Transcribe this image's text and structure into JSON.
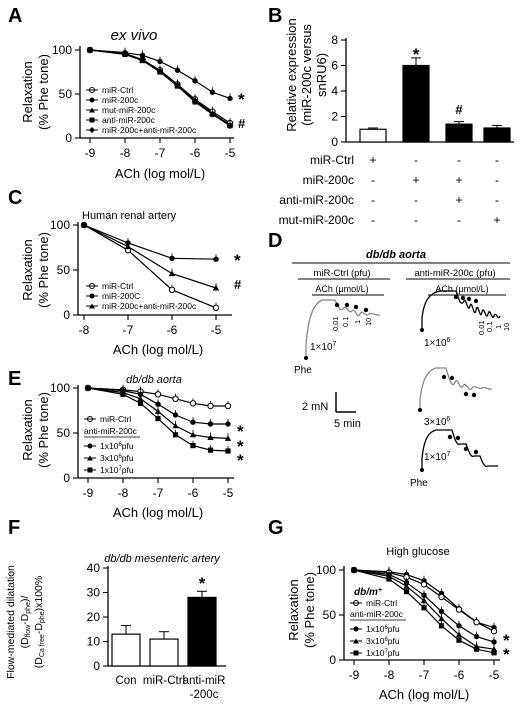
{
  "panels": {
    "A": {
      "label": "A",
      "subtitle": "ex vivo",
      "ylabel": [
        "Relaxation",
        "(% Phe tone)"
      ],
      "xlabel": "ACh (log mol/L)",
      "xticks": [
        "-9",
        "-8",
        "-7",
        "-6",
        "-5"
      ],
      "yticks": [
        "0",
        "50",
        "100"
      ],
      "legend": [
        "miR-Ctrl",
        "miR-200c",
        "mut-miR-200c",
        "anti-miR-200c",
        "miR-200c+anti-miR-200c"
      ],
      "marks": [
        "*",
        "#"
      ]
    },
    "B": {
      "label": "B",
      "ylabel": [
        "Relative expression",
        "(miR-200c versus",
        "snRU6)"
      ],
      "yticks": [
        "0",
        "2",
        "4",
        "6",
        "8"
      ],
      "rows": [
        {
          "name": "miR-Ctrl",
          "signs": [
            "+",
            "-",
            "-",
            "-"
          ]
        },
        {
          "name": "miR-200c",
          "signs": [
            "-",
            "+",
            "+",
            "-"
          ]
        },
        {
          "name": "anti-miR-200c",
          "signs": [
            "-",
            "-",
            "+",
            "-"
          ]
        },
        {
          "name": "mut-miR-200c",
          "signs": [
            "-",
            "-",
            "-",
            "+"
          ]
        }
      ],
      "marks": [
        "*",
        "#"
      ]
    },
    "C": {
      "label": "C",
      "subtitle": "Human renal  artery",
      "ylabel": [
        "Relaxation",
        "(% Phe tone)"
      ],
      "xlabel": "ACh (log mol/L)",
      "xticks": [
        "-8",
        "-7",
        "-6",
        "-5"
      ],
      "yticks": [
        "0",
        "50",
        "100"
      ],
      "legend": [
        "miR-Ctrl",
        "miR-200C",
        "miR-200c+anti-miR-200c"
      ],
      "marks": [
        "*",
        "#"
      ]
    },
    "D": {
      "label": "D",
      "title": "db/db aorta",
      "col1": "miR-Ctrl (pfu)",
      "col2": "anti-miR-200c (pfu)",
      "ach": "ACh (µmol/L)",
      "doses": [
        "0.01",
        "0.1",
        "1",
        "10"
      ],
      "phe": "Phe",
      "pfu1": "1×10",
      "pfu1e": "7",
      "pfu2": "1×10",
      "pfu2e": "6",
      "pfu3": "3×10",
      "pfu3e": "6",
      "pfu4": "1×10",
      "pfu4e": "7",
      "scale_mn": "2 mN",
      "scale_min": "5 min"
    },
    "E": {
      "label": "E",
      "subtitle": "db/db aorta",
      "ylabel": [
        "Relaxation",
        "(% Phe tone)"
      ],
      "xlabel": "ACh (log mol/L)",
      "xticks": [
        "-9",
        "-8",
        "-7",
        "-6",
        "-5"
      ],
      "yticks": [
        "0",
        "50",
        "100"
      ],
      "legend": [
        "miR-Ctrl",
        "anti-miR-200c",
        "1x10",
        "6",
        "pfu",
        "3x10",
        "6",
        "pfu",
        "1x10",
        "7",
        "pfu"
      ],
      "marks": [
        "*",
        "*",
        "*"
      ]
    },
    "F": {
      "label": "F",
      "subtitle": "db/db mesenteric artery",
      "yticks": [
        "0",
        "10",
        "20",
        "30",
        "40"
      ],
      "ylabel": [
        "Flow-mediated dilatation",
        "(D",
        "flow",
        "-D",
        "phe",
        ")/",
        "(D",
        "Ca free",
        "-D",
        "phe",
        ")x100%"
      ],
      "cats": [
        "Con",
        "miR-Ctrl",
        "anti-miR",
        "-200c"
      ],
      "marks": [
        "*"
      ]
    },
    "G": {
      "label": "G",
      "subtitle": "High glucose",
      "ylabel": [
        "Relaxation",
        "(% Phe tone)"
      ],
      "xlabel": "ACh (log mol/L)",
      "xticks": [
        "-9",
        "-8",
        "-7",
        "-6",
        "-5"
      ],
      "yticks": [
        "0",
        "50",
        "100"
      ],
      "legend": [
        "db/m",
        "+",
        "miR-Ctrl",
        "anti-miR-200c",
        "1x10",
        "6",
        "pfu",
        "3x10",
        "6",
        "pfu",
        "1x10",
        "7",
        "pfu"
      ],
      "marks": [
        "*",
        "*"
      ]
    }
  },
  "chart_data": [
    {
      "panel": "A",
      "type": "line",
      "x": [
        -9,
        -8,
        -7.5,
        -7,
        -6.5,
        -6,
        -5.5,
        -5
      ],
      "ylim": [
        0,
        100
      ],
      "xlim": [
        -9,
        -5
      ],
      "series": [
        {
          "name": "miR-Ctrl",
          "marker": "open-circle",
          "values": [
            100,
            96,
            89,
            77,
            61,
            44,
            30,
            17
          ]
        },
        {
          "name": "miR-200c",
          "marker": "filled-circle",
          "values": [
            100,
            97,
            94,
            87,
            77,
            65,
            52,
            45
          ]
        },
        {
          "name": "mut-miR-200c",
          "marker": "filled-triangle",
          "values": [
            100,
            96,
            88,
            76,
            60,
            43,
            28,
            15
          ]
        },
        {
          "name": "anti-miR-200c",
          "marker": "filled-square",
          "values": [
            100,
            95,
            88,
            75,
            59,
            41,
            27,
            14
          ]
        },
        {
          "name": "miR-200c+anti-miR-200c",
          "marker": "filled-diamond",
          "values": [
            100,
            96,
            89,
            76,
            60,
            42,
            27,
            14
          ]
        }
      ]
    },
    {
      "panel": "B",
      "type": "bar",
      "categories": [
        "1",
        "2",
        "3",
        "4"
      ],
      "values": [
        1.0,
        6.0,
        1.4,
        1.1
      ],
      "errors": [
        0.1,
        0.6,
        0.2,
        0.2
      ],
      "ylim": [
        0,
        8
      ]
    },
    {
      "panel": "C",
      "type": "line",
      "x": [
        -8,
        -7,
        -6,
        -5
      ],
      "ylim": [
        0,
        100
      ],
      "xlim": [
        -8,
        -5
      ],
      "series": [
        {
          "name": "miR-Ctrl",
          "marker": "open-circle",
          "values": [
            100,
            72,
            28,
            8
          ]
        },
        {
          "name": "miR-200C",
          "marker": "filled-circle",
          "values": [
            100,
            80,
            63,
            62
          ]
        },
        {
          "name": "miR-200c+anti-miR-200c",
          "marker": "filled-triangle",
          "values": [
            100,
            76,
            46,
            30
          ]
        }
      ]
    },
    {
      "panel": "E",
      "type": "line",
      "x": [
        -9,
        -8,
        -7.5,
        -7,
        -6.5,
        -6,
        -5.5,
        -5
      ],
      "ylim": [
        0,
        100
      ],
      "xlim": [
        -9,
        -5
      ],
      "series": [
        {
          "name": "miR-Ctrl",
          "marker": "open-circle",
          "values": [
            100,
            98,
            96,
            93,
            88,
            83,
            80,
            80
          ]
        },
        {
          "name": "1x10^6pfu",
          "marker": "filled-circle",
          "values": [
            100,
            97,
            93,
            82,
            70,
            62,
            60,
            60
          ]
        },
        {
          "name": "3x10^6pfu",
          "marker": "filled-triangle",
          "values": [
            100,
            95,
            88,
            74,
            58,
            48,
            45,
            44
          ]
        },
        {
          "name": "1x10^7pfu",
          "marker": "filled-square",
          "values": [
            100,
            93,
            83,
            66,
            48,
            36,
            31,
            30
          ]
        }
      ]
    },
    {
      "panel": "F",
      "type": "bar",
      "categories": [
        "Con",
        "miR-Ctrl",
        "anti-miR-200c"
      ],
      "values": [
        13,
        11,
        28
      ],
      "errors": [
        3.5,
        3,
        2.5
      ],
      "ylim": [
        0,
        40
      ]
    },
    {
      "panel": "G",
      "type": "line",
      "x": [
        -9,
        -8,
        -7.5,
        -7,
        -6.5,
        -6,
        -5.5,
        -5
      ],
      "ylim": [
        0,
        100
      ],
      "xlim": [
        -9,
        -5
      ],
      "series": [
        {
          "name": "db/m+",
          "marker": "filled-circle",
          "values": [
            100,
            98,
            95,
            88,
            74,
            57,
            42,
            36
          ]
        },
        {
          "name": "miR-Ctrl",
          "marker": "open-circle",
          "values": [
            100,
            97,
            92,
            84,
            70,
            56,
            42,
            32
          ]
        },
        {
          "name": "1x10^6pfu",
          "marker": "filled-circle",
          "values": [
            100,
            95,
            86,
            72,
            54,
            38,
            26,
            20
          ]
        },
        {
          "name": "3x10^6pfu",
          "marker": "filled-triangle",
          "values": [
            100,
            93,
            82,
            66,
            46,
            28,
            15,
            12
          ]
        },
        {
          "name": "1x10^7pfu",
          "marker": "filled-square",
          "values": [
            100,
            90,
            76,
            58,
            38,
            22,
            12,
            8
          ]
        }
      ]
    }
  ]
}
